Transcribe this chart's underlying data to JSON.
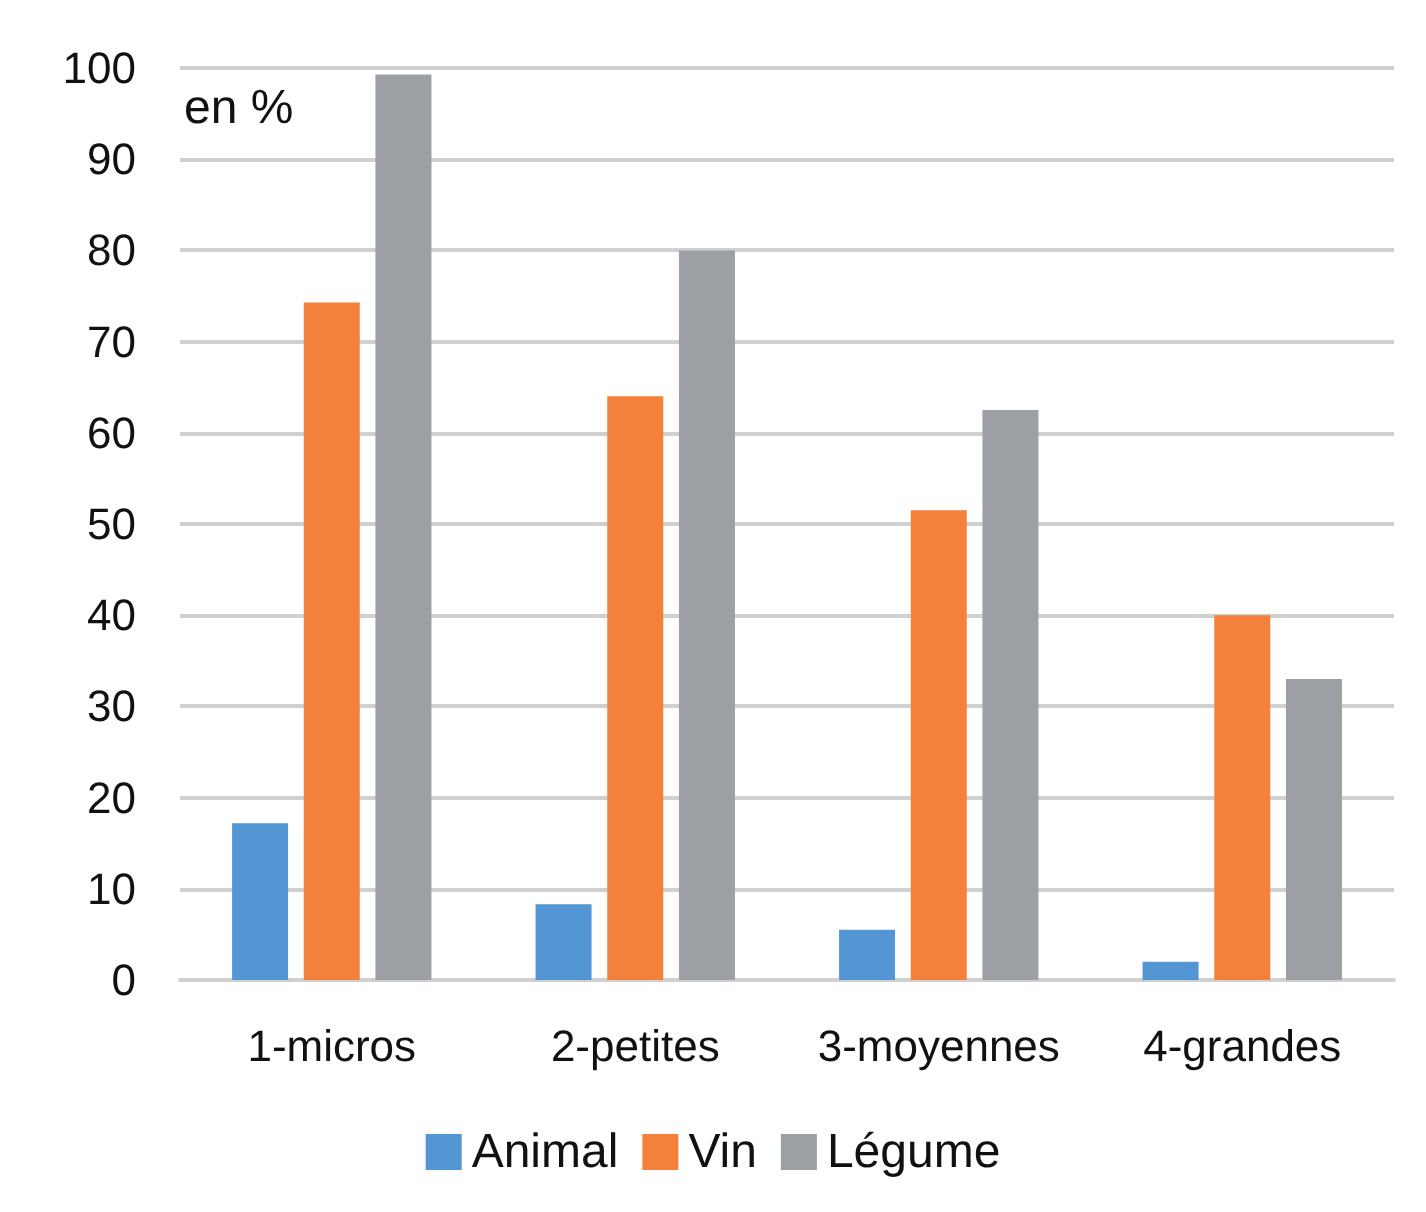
{
  "chart_data": {
    "type": "bar",
    "ylabel": "en %",
    "categories": [
      "1-micros",
      "2-petites",
      "3-moyennes",
      "4-grandes"
    ],
    "series": [
      {
        "name": "Animal",
        "color": "#5396d3",
        "values": [
          17.2,
          8.3,
          5.5,
          2
        ]
      },
      {
        "name": "Vin",
        "color": "#f3803b",
        "values": [
          74.3,
          64,
          51.5,
          40
        ]
      },
      {
        "name": "Légume",
        "color": "#9c9fa3",
        "values": [
          99.3,
          80,
          62.5,
          33
        ]
      }
    ],
    "ylim": [
      0,
      100
    ],
    "yticks": [
      0,
      10,
      20,
      30,
      40,
      50,
      60,
      70,
      80,
      90,
      100
    ],
    "grid": "y",
    "legend": "bottom"
  }
}
